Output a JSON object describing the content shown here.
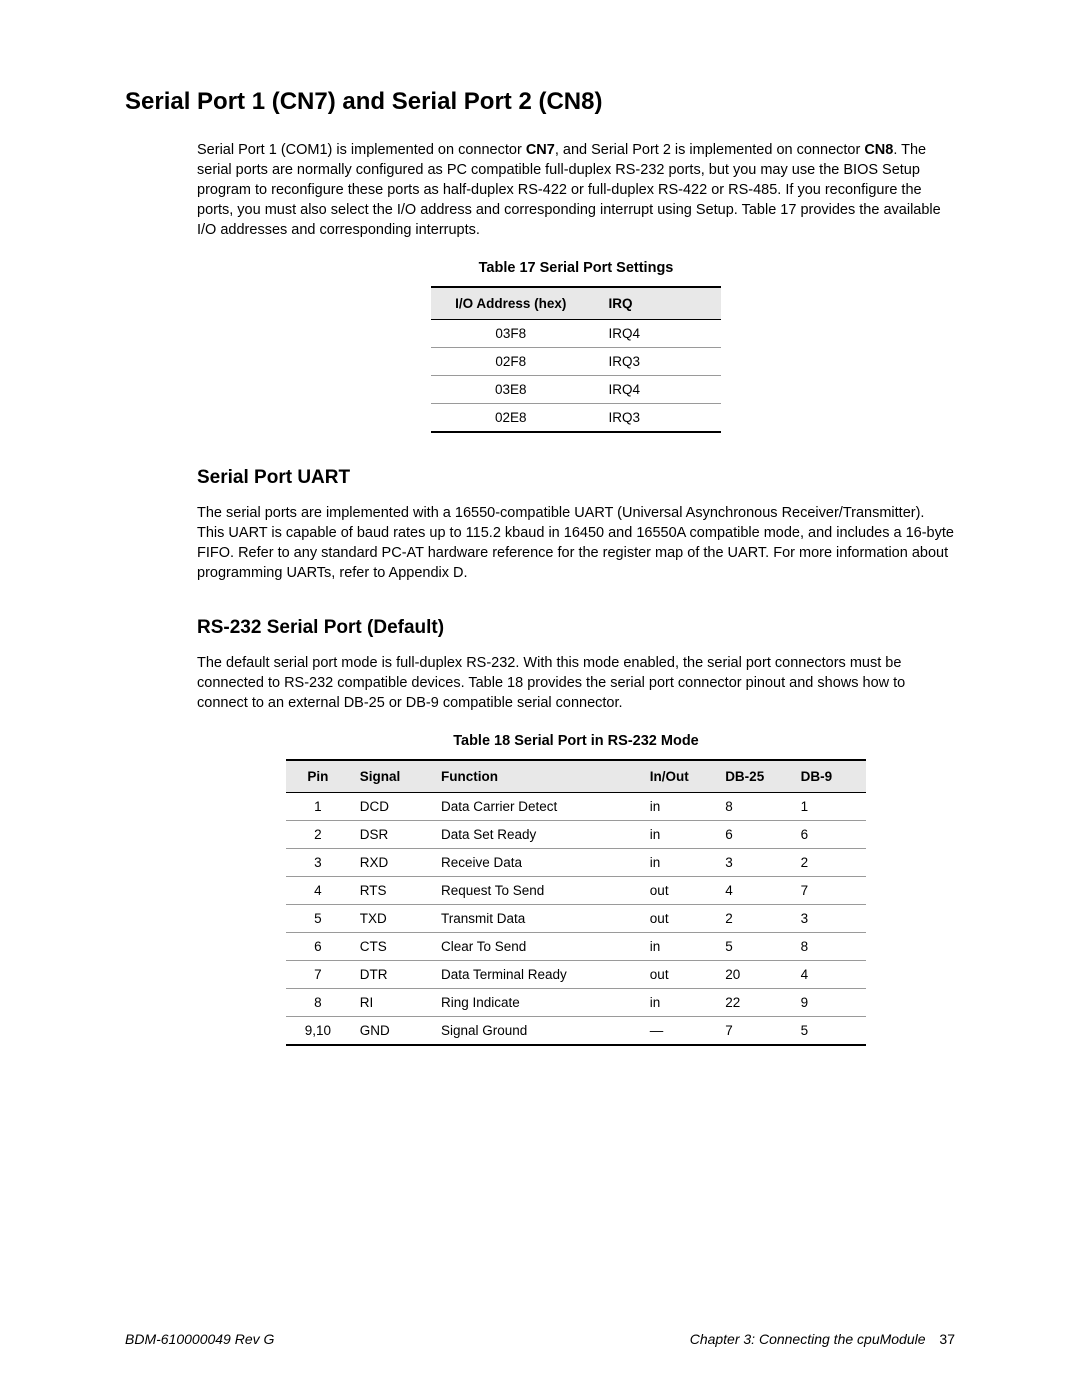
{
  "heading_main": "Serial Port 1 (CN7) and Serial Port 2 (CN8)",
  "intro_para": "Serial Port 1 (COM1) is implemented on connector CN7, and Serial Port 2 is implemented on connector CN8. The serial ports are normally configured as PC compatible full-duplex RS-232 ports, but you may use the BIOS Setup program to reconfigure these ports as half-duplex RS-422 or full-duplex RS-422 or RS-485. If you reconfigure the ports, you must also select the I/O address and corresponding interrupt using Setup. Table 17 provides the available I/O addresses and corresponding interrupts.",
  "table17": {
    "caption": "Table 17     Serial Port Settings",
    "columns": [
      "I/O Address (hex)",
      "IRQ"
    ],
    "rows": [
      [
        "03F8",
        "IRQ4"
      ],
      [
        "02F8",
        "IRQ3"
      ],
      [
        "03E8",
        "IRQ4"
      ],
      [
        "02E8",
        "IRQ3"
      ]
    ]
  },
  "heading_uart": "Serial Port UART",
  "uart_para": "The serial ports are implemented with a 16550-compatible UART (Universal Asynchronous Receiver/Transmitter). This UART is capable of baud rates up to 115.2 kbaud in 16450 and 16550A compatible mode, and includes a 16-byte FIFO. Refer to any standard PC-AT hardware reference for the register map of the UART. For more information about programming UARTs, refer to Appendix D.",
  "heading_rs232": "RS-232 Serial Port (Default)",
  "rs232_para": "The default serial port mode is full-duplex RS-232. With this mode enabled, the serial port connectors must be connected to RS-232 compatible devices. Table 18 provides the serial port connector pinout and shows how to connect to an external DB-25 or DB-9 compatible serial connector.",
  "table18": {
    "caption": "Table 18     Serial Port in RS-232 Mode",
    "columns": [
      "Pin",
      "Signal",
      "Function",
      "In/Out",
      "DB-25",
      "DB-9"
    ],
    "rows": [
      [
        "1",
        "DCD",
        "Data Carrier Detect",
        "in",
        "8",
        "1"
      ],
      [
        "2",
        "DSR",
        "Data Set Ready",
        "in",
        "6",
        "6"
      ],
      [
        "3",
        "RXD",
        "Receive Data",
        "in",
        "3",
        "2"
      ],
      [
        "4",
        "RTS",
        "Request To Send",
        "out",
        "4",
        "7"
      ],
      [
        "5",
        "TXD",
        "Transmit Data",
        "out",
        "2",
        "3"
      ],
      [
        "6",
        "CTS",
        "Clear To Send",
        "in",
        "5",
        "8"
      ],
      [
        "7",
        "DTR",
        "Data Terminal Ready",
        "out",
        "20",
        "4"
      ],
      [
        "8",
        "RI",
        "Ring Indicate",
        "in",
        "22",
        "9"
      ],
      [
        "9,10",
        "GND",
        "Signal Ground",
        "—",
        "7",
        "5"
      ]
    ]
  },
  "footer_left": "BDM-610000049    Rev G",
  "footer_right_text": "Chapter 3:  Connecting the cpuModule",
  "footer_page": "37"
}
